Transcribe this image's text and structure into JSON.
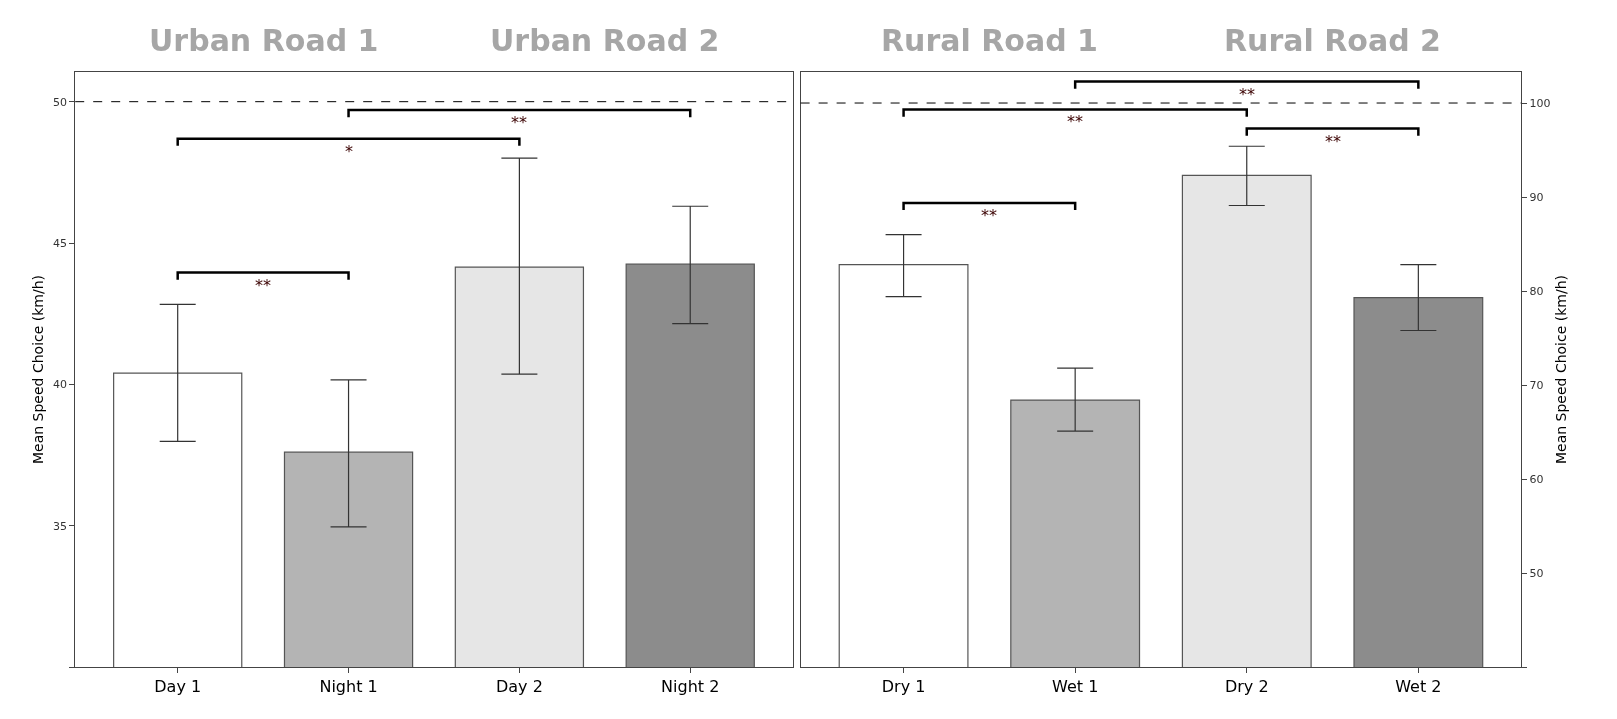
{
  "chart_data": [
    {
      "type": "bar",
      "categories": [
        "Day 1",
        "Night 1",
        "Day 2",
        "Night 2"
      ],
      "ylabel": "Mean Speed Choice (km/h)",
      "values": [
        40.4,
        37.6,
        44.15,
        44.25
      ],
      "errors": [
        [
          37.98,
          42.83
        ],
        [
          34.96,
          40.16
        ],
        [
          40.36,
          48.0
        ],
        [
          42.15,
          46.3
        ]
      ],
      "colors": [
        "#ffffff",
        "#b4b4b4",
        "#e6e6e6",
        "#8c8c8c"
      ],
      "ylim": [
        30,
        51.05
      ],
      "yticks": [
        {
          "value": 30,
          "label": null
        },
        35,
        40,
        45,
        50
      ],
      "ref_lines": [
        {
          "axis": "y",
          "value": 50,
          "color": "#000000",
          "line_style": "dashed"
        }
      ],
      "annotations": [
        "Urban Road 1",
        "Urban Road 2",
        "**",
        "*",
        "**"
      ],
      "grid": false,
      "legend": false
    },
    {
      "type": "bar",
      "categories": [
        "Dry 1",
        "Wet 1",
        "Dry 2",
        "Wet 2"
      ],
      "y2label": "Mean Speed Choice (km/h)",
      "series": [
        {
          "axis": "y2",
          "values": [
            82.8,
            68.4,
            92.3,
            79.3
          ],
          "errors": [
            [
              79.4,
              86.0
            ],
            [
              65.1,
              71.8
            ],
            [
              89.1,
              95.4
            ],
            [
              75.8,
              82.8
            ]
          ],
          "colors": [
            "#ffffff",
            "#b4b4b4",
            "#e6e6e6",
            "#8c8c8c"
          ]
        }
      ],
      "y2lim": [
        40,
        103.3
      ],
      "y2ticks": [
        {
          "value": 40,
          "label": null
        },
        50,
        60,
        70,
        80,
        90,
        100
      ],
      "ref_lines": [
        {
          "axis": "y2",
          "value": 100,
          "color": "#000000",
          "line_style": "dashed"
        }
      ],
      "annotations": [
        "Rural Road 1",
        "Rural Road 2",
        "**",
        "**",
        "**",
        "**"
      ],
      "grid": false,
      "legend": false
    }
  ]
}
